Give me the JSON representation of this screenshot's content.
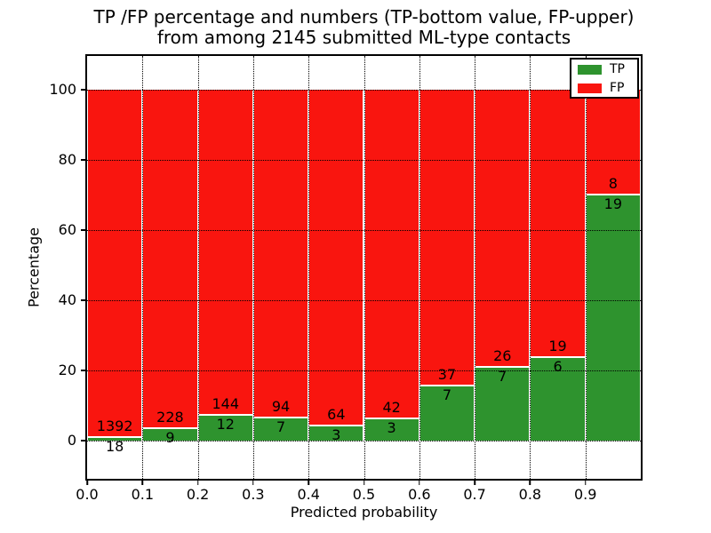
{
  "figure": {
    "background_color": "#ffffff",
    "title_line1": "TP /FP percentage and numbers (TP-bottom value, FP-upper)",
    "title_line2": "from among 2145 submitted ML-type contacts"
  },
  "chart_data": {
    "type": "bar",
    "variant": "stacked-percentage-histogram",
    "title": "TP /FP percentage and numbers (TP-bottom value, FP-upper)\nfrom among 2145 submitted ML-type contacts",
    "xlabel": "Predicted probability",
    "ylabel": "Percentage",
    "total_contacts": 2145,
    "bin_width": 0.1,
    "bin_starts": [
      0.0,
      0.1,
      0.2,
      0.3,
      0.4,
      0.5,
      0.6,
      0.7,
      0.8,
      0.9
    ],
    "xtick_labels": [
      "0.0",
      "0.1",
      "0.2",
      "0.3",
      "0.4",
      "0.5",
      "0.6",
      "0.7",
      "0.8",
      "0.9"
    ],
    "ytick_values": [
      0,
      20,
      40,
      60,
      80,
      100
    ],
    "ytick_labels": [
      "0",
      "20",
      "40",
      "60",
      "80",
      "100"
    ],
    "xlim": [
      0.0,
      1.0
    ],
    "ylim": [
      -10.8,
      109.6
    ],
    "grid": true,
    "grid_style": "dotted",
    "bars_normalized_to": 100,
    "series": [
      {
        "name": "TP",
        "color": "#2e932e",
        "counts": [
          18,
          9,
          12,
          7,
          3,
          3,
          7,
          7,
          6,
          19
        ]
      },
      {
        "name": "FP",
        "color": "#f9150f",
        "counts": [
          1392,
          228,
          144,
          94,
          64,
          42,
          37,
          26,
          19,
          8
        ]
      }
    ],
    "tp_percent_of_bin": [
      1.28,
      3.8,
      7.69,
      6.93,
      4.48,
      6.67,
      15.91,
      21.21,
      24.0,
      70.37
    ],
    "legend": {
      "position": "upper right",
      "entries": [
        {
          "label": "TP",
          "color": "#2e932e"
        },
        {
          "label": "FP",
          "color": "#f9150f"
        }
      ]
    }
  }
}
